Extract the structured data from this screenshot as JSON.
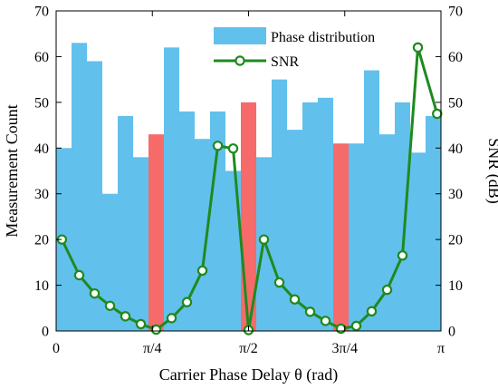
{
  "chart_data": {
    "type": "bar",
    "xlabel": "Carrier Phase Delay θ (rad)",
    "ylabel": "Measurement Count",
    "y2label": "SNR (dB)",
    "xlim": [
      0,
      3.14159
    ],
    "ylim": [
      0,
      70
    ],
    "y2lim": [
      0,
      70
    ],
    "x_ticks": [
      {
        "value": 0,
        "label": "0"
      },
      {
        "value": 0.7854,
        "label": "π/4"
      },
      {
        "value": 1.5708,
        "label": "π/2"
      },
      {
        "value": 2.3562,
        "label": "3π/4"
      },
      {
        "value": 3.14159,
        "label": "π"
      }
    ],
    "y_ticks": [
      0,
      10,
      20,
      30,
      40,
      50,
      60,
      70
    ],
    "y2_ticks": [
      0,
      10,
      20,
      30,
      40,
      50,
      60,
      70
    ],
    "grid": false,
    "legend": {
      "placement": "top-right",
      "entries": [
        {
          "name": "Phase distribution",
          "kind": "bar",
          "color": "#62c0ec"
        },
        {
          "name": "SNR",
          "kind": "line-marker",
          "color": "#1f8a1f"
        }
      ]
    },
    "bar_width": 0.1257,
    "bars": [
      {
        "x": 0.0628,
        "value": 40,
        "highlight": false
      },
      {
        "x": 0.1885,
        "value": 63,
        "highlight": false
      },
      {
        "x": 0.3142,
        "value": 59,
        "highlight": false
      },
      {
        "x": 0.4398,
        "value": 30,
        "highlight": false
      },
      {
        "x": 0.5655,
        "value": 47,
        "highlight": false
      },
      {
        "x": 0.6912,
        "value": 38,
        "highlight": false
      },
      {
        "x": 0.8168,
        "value": 43,
        "highlight": true
      },
      {
        "x": 0.9425,
        "value": 62,
        "highlight": false
      },
      {
        "x": 1.0681,
        "value": 48,
        "highlight": false
      },
      {
        "x": 1.1938,
        "value": 42,
        "highlight": false
      },
      {
        "x": 1.3195,
        "value": 48,
        "highlight": false
      },
      {
        "x": 1.4451,
        "value": 35,
        "highlight": false
      },
      {
        "x": 1.5708,
        "value": 50,
        "highlight": true
      },
      {
        "x": 1.6965,
        "value": 38,
        "highlight": false
      },
      {
        "x": 1.8221,
        "value": 55,
        "highlight": false
      },
      {
        "x": 1.9478,
        "value": 44,
        "highlight": false
      },
      {
        "x": 2.0735,
        "value": 50,
        "highlight": false
      },
      {
        "x": 2.1991,
        "value": 51,
        "highlight": false
      },
      {
        "x": 2.3248,
        "value": 41,
        "highlight": true
      },
      {
        "x": 2.4504,
        "value": 41,
        "highlight": false
      },
      {
        "x": 2.5761,
        "value": 57,
        "highlight": false
      },
      {
        "x": 2.7018,
        "value": 43,
        "highlight": false
      },
      {
        "x": 2.8274,
        "value": 50,
        "highlight": false
      },
      {
        "x": 2.9531,
        "value": 39,
        "highlight": false
      },
      {
        "x": 3.0788,
        "value": 47,
        "highlight": false
      }
    ],
    "snr_series": {
      "name": "SNR",
      "points": [
        [
          0.0471,
          20.0
        ],
        [
          0.1885,
          12.2
        ],
        [
          0.3142,
          8.2
        ],
        [
          0.4398,
          5.5
        ],
        [
          0.5655,
          3.2
        ],
        [
          0.6912,
          1.5
        ],
        [
          0.8168,
          0.3
        ],
        [
          0.9425,
          2.8
        ],
        [
          1.0681,
          6.3
        ],
        [
          1.1938,
          13.2
        ],
        [
          1.3195,
          40.5
        ],
        [
          1.4451,
          39.9
        ],
        [
          1.5708,
          0.2
        ],
        [
          1.6965,
          20.0
        ],
        [
          1.8221,
          10.6
        ],
        [
          1.9478,
          6.9
        ],
        [
          2.0735,
          4.2
        ],
        [
          2.1991,
          2.2
        ],
        [
          2.3248,
          0.5
        ],
        [
          2.4504,
          1.1
        ],
        [
          2.5761,
          4.3
        ],
        [
          2.7018,
          9.0
        ],
        [
          2.8274,
          16.5
        ],
        [
          2.9531,
          62.0
        ],
        [
          3.1102,
          47.5
        ]
      ]
    },
    "colors": {
      "bar": "#62c0ec",
      "bar_highlight": "#f76a6a",
      "line": "#1f8a1f",
      "marker_fill": "#ffffff"
    }
  }
}
